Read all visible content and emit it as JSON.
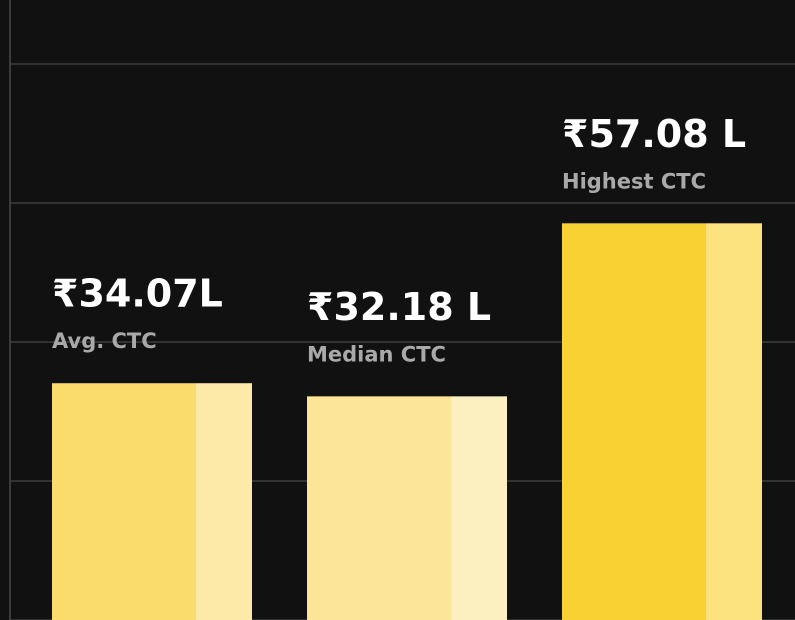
{
  "chart_data": {
    "type": "bar",
    "categories": [
      "Avg. CTC",
      "Median CTC",
      "Highest CTC"
    ],
    "values": [
      34.07,
      32.18,
      57.08
    ],
    "value_labels": [
      "₹34.07L",
      "₹32.18 L",
      "₹57.08 L"
    ],
    "colors": [
      "#f9dc6c",
      "#fbe596",
      "#f8d132"
    ],
    "shade_colors": [
      "#fde9a8",
      "#fdf0c0",
      "#fbe27f"
    ],
    "ylim": [
      0,
      80
    ],
    "yticks": [
      0,
      20,
      40,
      60,
      80
    ],
    "grid": true
  }
}
